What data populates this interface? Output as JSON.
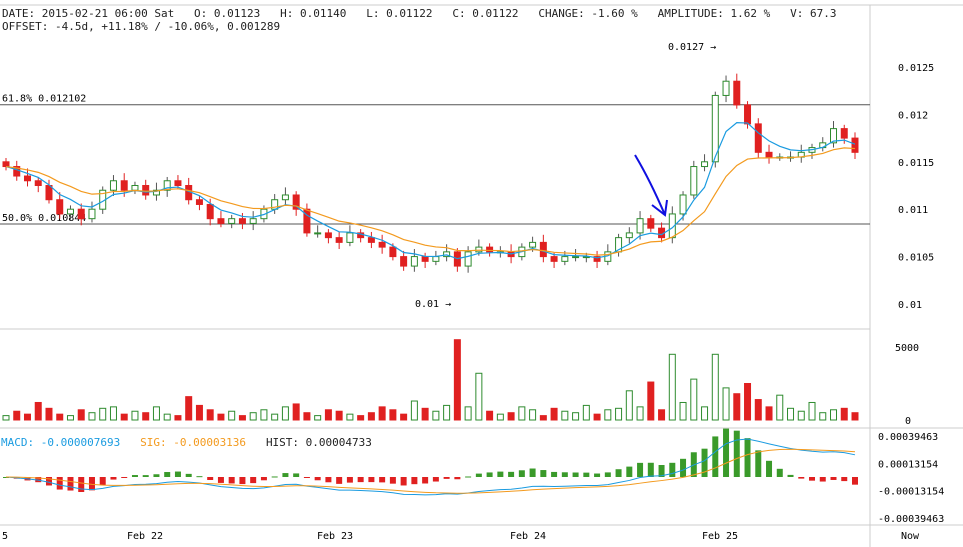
{
  "header": {
    "line1": "DATE: 2015-02-21 06:00 Sat   O: 0.01123   H: 0.01140   L: 0.01122   C: 0.01122   CHANGE: -1.60 %   AMPLITUDE: 1.62 %   V: 67.3",
    "line2": "OFFSET: -4.5d, +11.18% / -10.06%, 0.001289"
  },
  "macd_header": {
    "macd": "MACD: -0.000007693",
    "sig": "SIG: -0.00003136",
    "hist": "HIST: 0.00004733"
  },
  "colors": {
    "up": "#2e8b2e",
    "down": "#e02020",
    "ma_fast": "#1a9be0",
    "ma_slow": "#f39a1e",
    "arrow": "#1010e0"
  },
  "chart_data": {
    "type": "candlestick",
    "price_ticks": [
      "0.0125",
      "0.012",
      "0.0115",
      "0.011",
      "0.0105",
      "0.01"
    ],
    "price_range": [
      0.00985,
      0.0129
    ],
    "fib_levels": [
      {
        "label": "61.8% 0.012102",
        "value": 0.012102
      },
      {
        "label": "50.0% 0.010844",
        "value": 0.010844
      }
    ],
    "annotations": [
      {
        "label": "0.0127 →",
        "value": 0.0127
      },
      {
        "label": "0.01 →",
        "value": 0.01
      }
    ],
    "closes": [
      0.01145,
      0.01135,
      0.0113,
      0.01125,
      0.0111,
      0.01095,
      0.011,
      0.0109,
      0.011,
      0.0112,
      0.0113,
      0.0112,
      0.01125,
      0.01115,
      0.0112,
      0.0113,
      0.01125,
      0.0111,
      0.01105,
      0.0109,
      0.01085,
      0.0109,
      0.01085,
      0.0109,
      0.011,
      0.0111,
      0.01115,
      0.011,
      0.01075,
      0.01075,
      0.0107,
      0.01065,
      0.01075,
      0.0107,
      0.01065,
      0.0106,
      0.0105,
      0.0104,
      0.0105,
      0.01045,
      0.0105,
      0.01055,
      0.0104,
      0.01055,
      0.0106,
      0.01055,
      0.01055,
      0.0105,
      0.0106,
      0.01065,
      0.0105,
      0.01045,
      0.0105,
      0.0105,
      0.0105,
      0.01045,
      0.01055,
      0.0107,
      0.01075,
      0.0109,
      0.0108,
      0.0107,
      0.01095,
      0.01115,
      0.01145,
      0.0115,
      0.0122,
      0.01235,
      0.0121,
      0.0119,
      0.0116,
      0.01155,
      0.01155,
      0.01155,
      0.0116,
      0.01165,
      0.0117,
      0.01185,
      0.01175,
      0.0116
    ],
    "volume_ticks": [
      "5000",
      "0"
    ],
    "volumes": [
      300,
      600,
      400,
      1200,
      800,
      400,
      300,
      700,
      500,
      800,
      900,
      400,
      600,
      500,
      900,
      400,
      300,
      1600,
      1000,
      700,
      400,
      600,
      300,
      500,
      700,
      400,
      900,
      1100,
      500,
      300,
      700,
      600,
      400,
      300,
      500,
      900,
      700,
      400,
      1300,
      800,
      600,
      1000,
      5500,
      900,
      3200,
      600,
      400,
      500,
      900,
      700,
      300,
      800,
      600,
      500,
      1000,
      400,
      700,
      800,
      2000,
      900,
      2600,
      700,
      4500,
      1200,
      2800,
      900,
      4500,
      2200,
      1800,
      2500,
      1400,
      900,
      1700,
      800,
      600,
      1200,
      500,
      700,
      800,
      500
    ],
    "macd_ticks": [
      "0.00039463",
      "0.00013154",
      "-0.00013154",
      "-0.00039463"
    ],
    "time_ticks": [
      "5",
      "Feb 22",
      "Feb 23",
      "Feb 24",
      "Feb 25",
      "Now"
    ]
  }
}
